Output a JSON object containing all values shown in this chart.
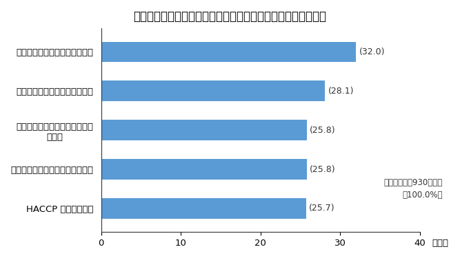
{
  "title": "図４　輸出に取り組む際の課題（食品製造業）　（複数回答）",
  "categories": [
    "HACCP 施設等の整備",
    "輸出を担当する人材の確保・育成",
    "現地規制や商習慣に関する情報\nの入手",
    "現地ビジネスパートナーの確保",
    "販路開拓のための取引先の確保"
  ],
  "values": [
    25.7,
    25.8,
    25.8,
    28.1,
    32.0
  ],
  "labels": [
    "(25.7)",
    "(25.8)",
    "(25.8)",
    "(28.1)",
    "(32.0)"
  ],
  "bar_color": "#5b9bd5",
  "xlim": [
    0,
    40
  ],
  "xticks": [
    0,
    10,
    20,
    30,
    40
  ],
  "xlabel": "（％）",
  "annotation_line1": "食品製造業：930事業所",
  "annotation_line2": "（100.0%）",
  "background_color": "#ffffff",
  "title_fontsize": 12,
  "label_fontsize": 9.5,
  "tick_fontsize": 9.5,
  "annotation_fontsize": 8.5,
  "value_label_fontsize": 9
}
